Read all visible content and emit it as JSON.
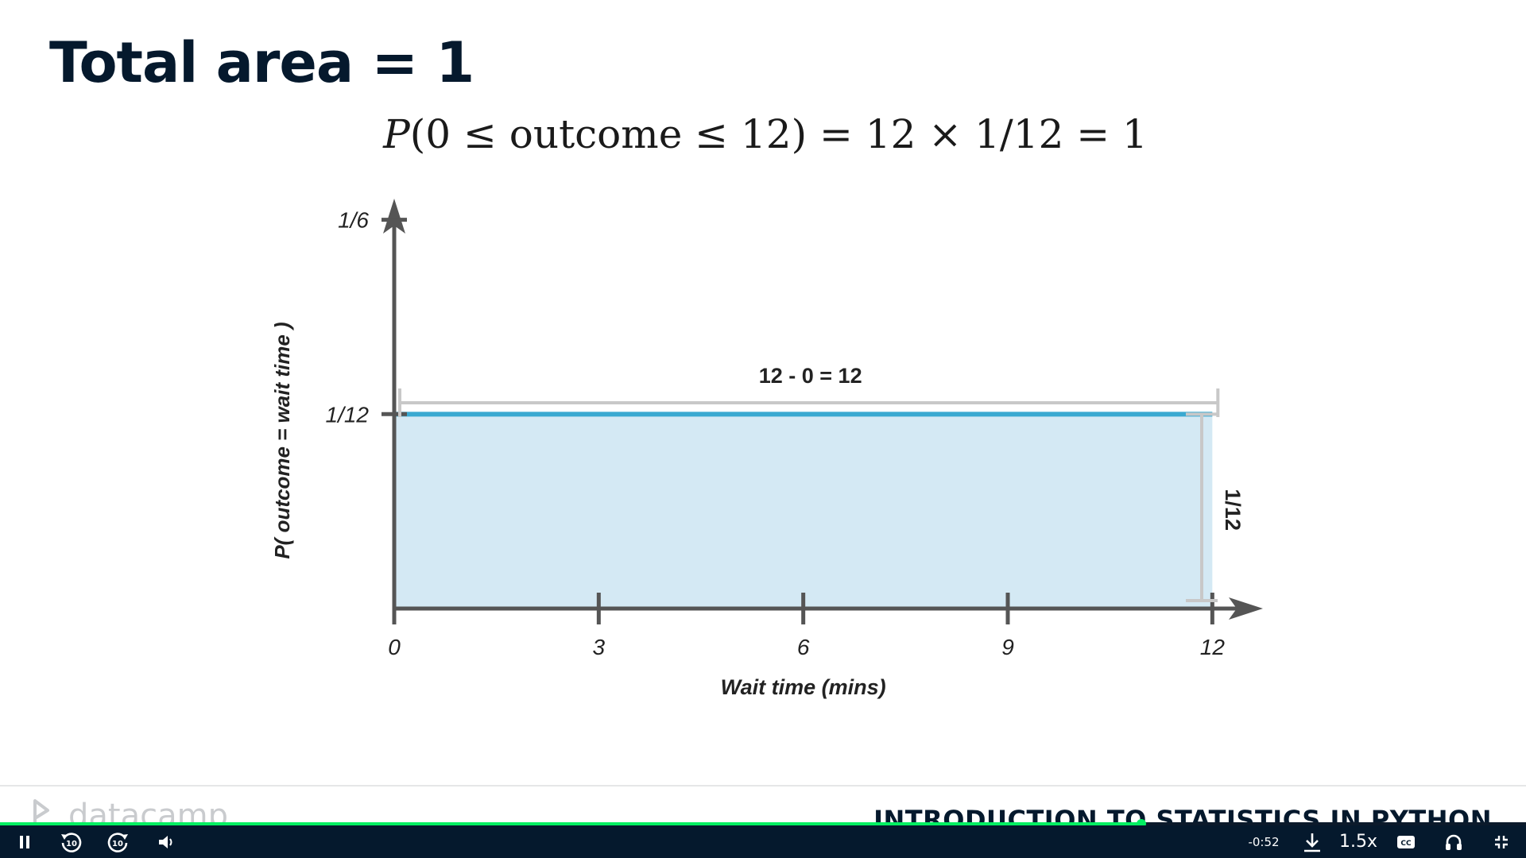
{
  "slide": {
    "title": "Total area = 1",
    "formula": {
      "p": "P",
      "open": "(0 ≤ outcome ≤ 12)",
      "rest": " = 12 × 1/12 = 1"
    }
  },
  "chart_data": {
    "type": "area",
    "xlabel": "Wait time (mins)",
    "ylabel": "P( outcome  = wait time )",
    "x_ticks": [
      "0",
      "3",
      "6",
      "9",
      "12"
    ],
    "y_ticks": [
      "1/12",
      "1/6"
    ],
    "x": [
      0,
      12
    ],
    "y": [
      0.0833,
      0.0833
    ],
    "xlim": [
      0,
      13.5
    ],
    "ylim": [
      0,
      0.22
    ],
    "annotations": {
      "width_label": "12 - 0  = 12",
      "height_label": "1/12"
    },
    "colors": {
      "line": "#3aa9d1",
      "fill": "#d4e9f4",
      "axis": "#555555",
      "bracket": "#c8c8c8"
    }
  },
  "footer": {
    "logo_text": "datacamp",
    "course_title": "INTRODUCTION TO STATISTICS IN PYTHON"
  },
  "player": {
    "progress": 0.748,
    "time_remaining": "-0:52",
    "speed": "1.5x",
    "skip_back_label": "10",
    "skip_forward_label": "10",
    "cc_label": "CC",
    "icons": {
      "pause": "pause-icon",
      "rewind": "rewind-10-icon",
      "forward": "forward-10-icon",
      "volume": "volume-icon",
      "download": "download-icon",
      "captions": "captions-icon",
      "audio": "headphones-icon",
      "fullscreen": "exit-fullscreen-icon"
    },
    "accent": "#03ef62",
    "bar_color": "#05192d"
  }
}
